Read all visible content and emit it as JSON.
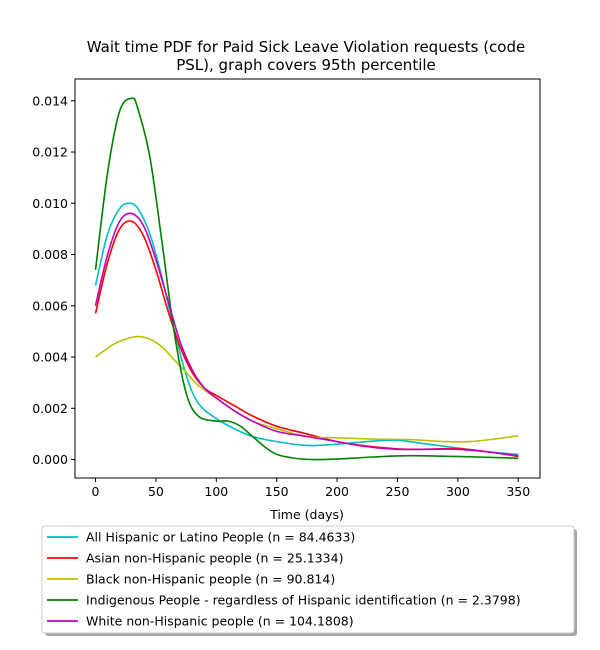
{
  "chart_data": {
    "type": "line",
    "title_lines": [
      "Wait time PDF for Paid Sick Leave Violation  requests (code",
      "PSL), graph covers 95th percentile"
    ],
    "xlabel": "Time (days)",
    "ylabel": "",
    "xlim": [
      -17,
      368
    ],
    "ylim": [
      -0.00072,
      0.01485
    ],
    "xticks": [
      0,
      50,
      100,
      150,
      200,
      250,
      300,
      350
    ],
    "yticks": [
      0.0,
      0.002,
      0.004,
      0.006,
      0.008,
      0.01,
      0.012,
      0.014
    ],
    "ytick_labels": [
      "0.000",
      "0.002",
      "0.004",
      "0.006",
      "0.008",
      "0.010",
      "0.012",
      "0.014"
    ],
    "grid": false,
    "legend_position": "below",
    "series": [
      {
        "name": "All Hispanic or Latino People (n = 84.4633)",
        "color": "#00bfbf",
        "x": [
          0,
          10,
          20,
          28,
          35,
          45,
          55,
          65,
          75,
          85,
          100,
          115,
          130,
          150,
          175,
          200,
          230,
          250,
          275,
          300,
          325,
          350
        ],
        "y": [
          0.0068,
          0.0088,
          0.0098,
          0.01,
          0.0098,
          0.0088,
          0.0071,
          0.0051,
          0.0033,
          0.0022,
          0.0016,
          0.0012,
          0.0009,
          0.0007,
          0.00055,
          0.0006,
          0.00072,
          0.00075,
          0.0006,
          0.00045,
          0.0003,
          0.0002
        ]
      },
      {
        "name": "Asian non-Hispanic people (n = 25.1334)",
        "color": "#ff0000",
        "x": [
          0,
          10,
          20,
          30,
          40,
          50,
          60,
          70,
          80,
          90,
          100,
          115,
          130,
          150,
          175,
          200,
          230,
          260,
          300,
          325,
          350
        ],
        "y": [
          0.0057,
          0.0077,
          0.009,
          0.0093,
          0.0087,
          0.0074,
          0.0058,
          0.0044,
          0.0034,
          0.0028,
          0.0025,
          0.0021,
          0.0017,
          0.0013,
          0.001,
          0.0007,
          0.0005,
          0.0004,
          0.00042,
          0.0003,
          0.00012
        ]
      },
      {
        "name": "Black non-Hispanic people (n = 90.814)",
        "color": "#bfbf00",
        "x": [
          0,
          15,
          25,
          35,
          45,
          55,
          65,
          75,
          85,
          100,
          115,
          130,
          150,
          175,
          200,
          230,
          260,
          290,
          310,
          330,
          350
        ],
        "y": [
          0.004,
          0.0045,
          0.0047,
          0.0048,
          0.0047,
          0.0044,
          0.0039,
          0.0034,
          0.0029,
          0.0024,
          0.0019,
          0.0015,
          0.0012,
          0.0009,
          0.00085,
          0.0008,
          0.00078,
          0.0007,
          0.0007,
          0.0008,
          0.00093
        ]
      },
      {
        "name": "Indigenous People - regardless of Hispanic identification (n = 2.3798)",
        "color": "#008000",
        "x": [
          0,
          10,
          20,
          30,
          35,
          45,
          55,
          65,
          75,
          85,
          100,
          110,
          120,
          130,
          140,
          150,
          165,
          180,
          200,
          230,
          260,
          300,
          330,
          350
        ],
        "y": [
          0.0074,
          0.0112,
          0.0136,
          0.0141,
          0.0137,
          0.0118,
          0.0085,
          0.005,
          0.0026,
          0.0017,
          0.0015,
          0.0015,
          0.0013,
          0.0009,
          0.0005,
          0.0002,
          5e-05,
          0.0,
          2e-05,
          0.0001,
          0.00015,
          0.00012,
          8e-05,
          5e-05
        ]
      },
      {
        "name": "White non-Hispanic people (n = 104.1808)",
        "color": "#bf00bf",
        "x": [
          0,
          10,
          20,
          30,
          40,
          50,
          60,
          70,
          80,
          90,
          100,
          115,
          130,
          150,
          175,
          200,
          225,
          250,
          275,
          300,
          325,
          350
        ],
        "y": [
          0.006,
          0.008,
          0.0093,
          0.0096,
          0.0091,
          0.0078,
          0.0062,
          0.0046,
          0.0035,
          0.0028,
          0.0024,
          0.0019,
          0.0015,
          0.0011,
          0.0009,
          0.0007,
          0.0005,
          0.0004,
          0.0004,
          0.0004,
          0.0003,
          0.00015
        ]
      }
    ]
  }
}
